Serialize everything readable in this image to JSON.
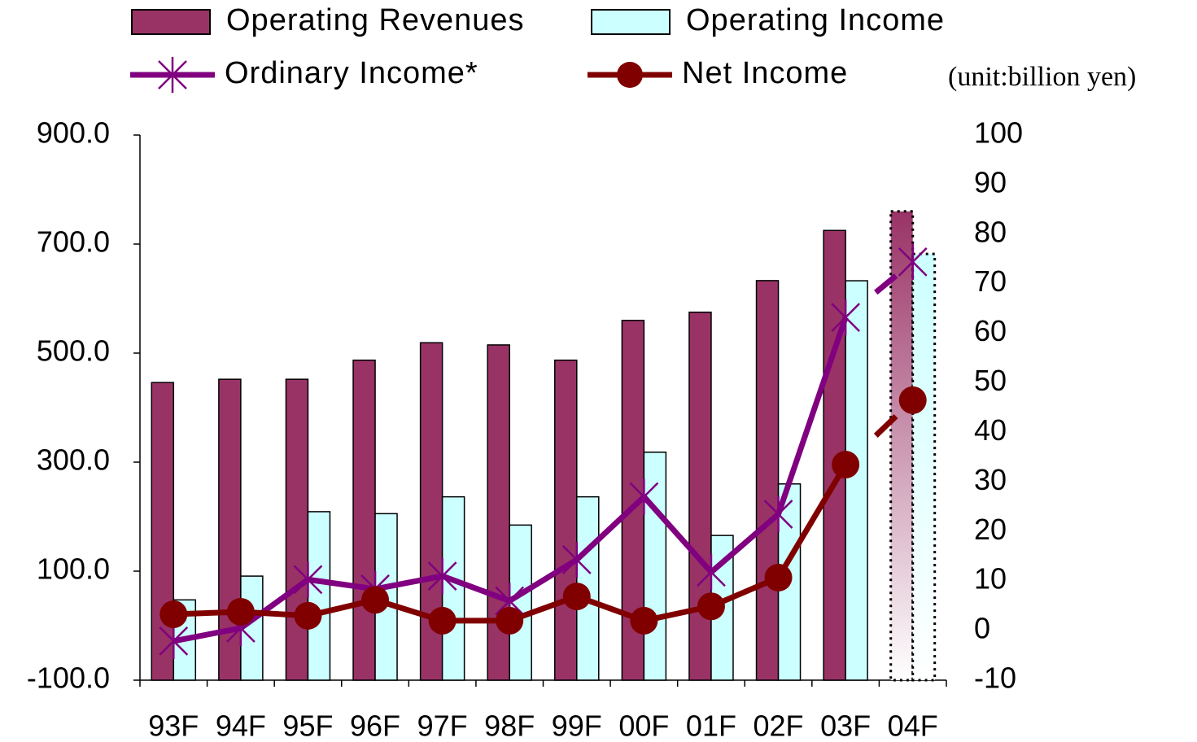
{
  "chart_data": {
    "type": "bar-line",
    "note": "(unit:billion yen)",
    "categories": [
      "93F",
      "94F",
      "95F",
      "96F",
      "97F",
      "98F",
      "99F",
      "00F",
      "01F",
      "02F",
      "03F",
      "04F"
    ],
    "series": [
      {
        "name": "Operating Revenues",
        "type": "bar",
        "color": "#993366",
        "values": [
          446,
          452,
          452,
          487,
          519,
          515,
          487,
          560,
          575,
          633,
          725,
          760
        ]
      },
      {
        "name": "Operating Income",
        "type": "bar",
        "color": "#ccffff",
        "axis": "y2",
        "values": [
          6.2,
          11,
          24,
          23.6,
          27,
          21.3,
          27,
          36,
          19.2,
          29.6,
          70.6,
          76
        ]
      },
      {
        "name": "Ordinary Income*",
        "type": "line",
        "marker": "star",
        "color": "#800080",
        "axis": "y2",
        "values": [
          -2.1,
          0.5,
          10.3,
          8.4,
          11,
          6,
          14.3,
          27,
          11.8,
          23.5,
          63.2,
          74.4
        ]
      },
      {
        "name": "Net Income",
        "type": "line",
        "marker": "circle",
        "color": "#800000",
        "axis": "y2",
        "values": [
          3.3,
          3.8,
          3,
          6.2,
          2,
          2,
          6.9,
          2,
          4.9,
          10.7,
          33.5,
          46.5
        ]
      }
    ],
    "ylim": [
      -100,
      900
    ],
    "yticks": [
      {
        "value": -100,
        "label": "-100.0"
      },
      {
        "value": 100,
        "label": "100.0"
      },
      {
        "value": 300,
        "label": "300.0"
      },
      {
        "value": 500,
        "label": "500.0"
      },
      {
        "value": 700,
        "label": "700.0"
      },
      {
        "value": 900,
        "label": "900.0"
      }
    ],
    "y2lim": [
      -10,
      100
    ],
    "y2ticks": [
      -10,
      0,
      10,
      20,
      30,
      40,
      50,
      60,
      70,
      80,
      90,
      100
    ]
  }
}
